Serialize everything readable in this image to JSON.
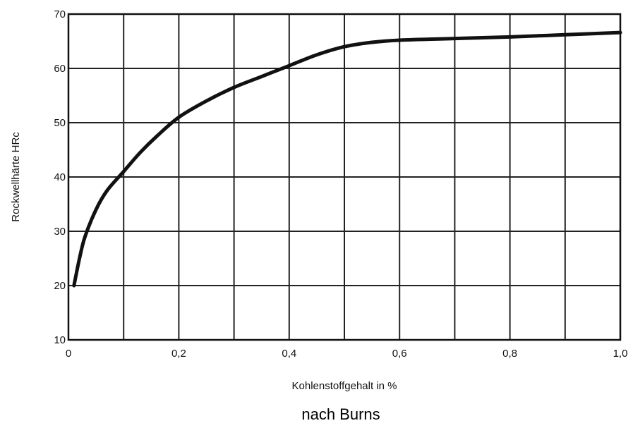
{
  "chart_data": {
    "type": "line",
    "xlabel": "Kohlenstoffgehalt in %",
    "ylabel": "Rockwellhärte HRc",
    "source_note": "nach Burns",
    "xlim": [
      0,
      1.0
    ],
    "ylim": [
      10,
      70
    ],
    "x_ticks": [
      {
        "value": 0,
        "label": "0"
      },
      {
        "value": 0.2,
        "label": "0,2"
      },
      {
        "value": 0.4,
        "label": "0,4"
      },
      {
        "value": 0.6,
        "label": "0,6"
      },
      {
        "value": 0.8,
        "label": "0,8"
      },
      {
        "value": 1.0,
        "label": "1,0"
      }
    ],
    "y_ticks": [
      {
        "value": 10,
        "label": "10"
      },
      {
        "value": 20,
        "label": "20"
      },
      {
        "value": 30,
        "label": "30"
      },
      {
        "value": 40,
        "label": "40"
      },
      {
        "value": 50,
        "label": "50"
      },
      {
        "value": 60,
        "label": "60"
      },
      {
        "value": 70,
        "label": "70"
      }
    ],
    "grid": true,
    "x_grid_step": 0.1,
    "y_grid_step": 10,
    "series": [
      {
        "color": "#111111",
        "points": [
          [
            0.01,
            20
          ],
          [
            0.02,
            25
          ],
          [
            0.03,
            29
          ],
          [
            0.05,
            34
          ],
          [
            0.07,
            37.5
          ],
          [
            0.1,
            41
          ],
          [
            0.13,
            44.5
          ],
          [
            0.16,
            47.5
          ],
          [
            0.2,
            51
          ],
          [
            0.25,
            54
          ],
          [
            0.3,
            56.5
          ],
          [
            0.35,
            58.5
          ],
          [
            0.4,
            60.5
          ],
          [
            0.45,
            62.5
          ],
          [
            0.5,
            64
          ],
          [
            0.55,
            64.8
          ],
          [
            0.6,
            65.2
          ],
          [
            0.7,
            65.5
          ],
          [
            0.8,
            65.8
          ],
          [
            0.9,
            66.2
          ],
          [
            1.0,
            66.6
          ]
        ]
      }
    ]
  }
}
